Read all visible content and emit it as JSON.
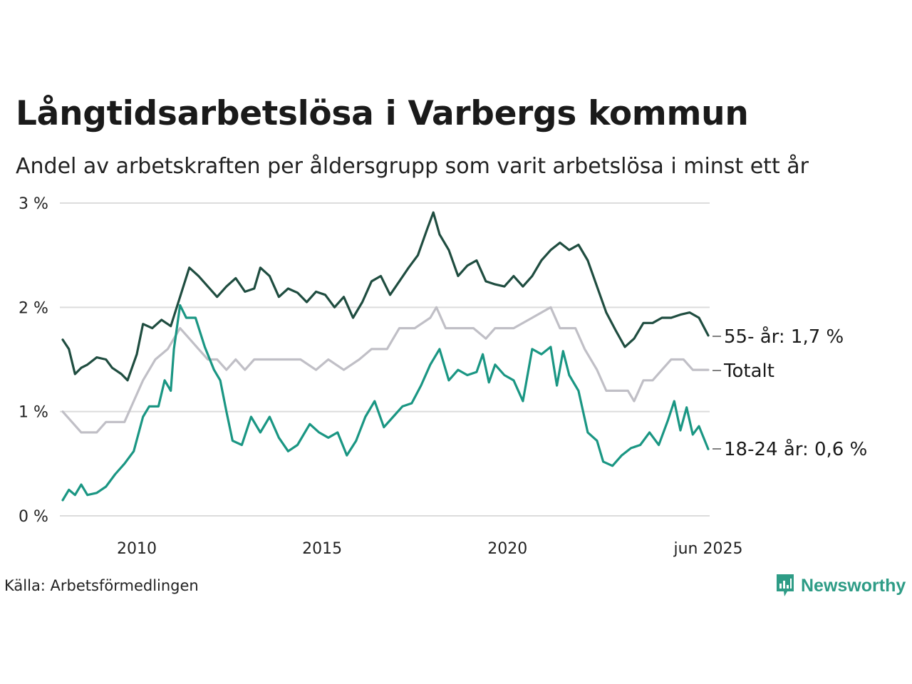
{
  "title": "Långtidsarbetslösa i Varbergs kommun",
  "subtitle": "Andel av arbetskraften per åldersgrupp som varit arbetslösa i minst ett år",
  "source": "Källa: Arbetsförmedlingen",
  "logo_text": "Newsworthy",
  "colors": {
    "s55": "#1f4d40",
    "total": "#c0bfc6",
    "s1824": "#1a9683",
    "grid": "#dcdcdc",
    "logo": "#2e9c86"
  },
  "chart_data": {
    "type": "line",
    "x_range": [
      "2008-01",
      "2025-06"
    ],
    "y_range": [
      0,
      3
    ],
    "y_ticks": [
      {
        "value": 0,
        "label": "0 %"
      },
      {
        "value": 1,
        "label": "1 %"
      },
      {
        "value": 2,
        "label": "2 %"
      },
      {
        "value": 3,
        "label": "3 %"
      }
    ],
    "x_ticks": [
      {
        "value": "2010-01",
        "label": "2010"
      },
      {
        "value": "2015-01",
        "label": "2015"
      },
      {
        "value": "2020-01",
        "label": "2020"
      },
      {
        "value": "2025-06",
        "label": "jun 2025"
      }
    ],
    "series": [
      {
        "key": "s55",
        "end_label": "55- år: 1,7 %",
        "points": [
          [
            "2008-01",
            1.69
          ],
          [
            "2008-03",
            1.6
          ],
          [
            "2008-05",
            1.36
          ],
          [
            "2008-07",
            1.42
          ],
          [
            "2008-09",
            1.45
          ],
          [
            "2008-12",
            1.52
          ],
          [
            "2009-03",
            1.5
          ],
          [
            "2009-05",
            1.42
          ],
          [
            "2009-08",
            1.36
          ],
          [
            "2009-10",
            1.3
          ],
          [
            "2010-01",
            1.55
          ],
          [
            "2010-03",
            1.84
          ],
          [
            "2010-06",
            1.8
          ],
          [
            "2010-09",
            1.88
          ],
          [
            "2010-12",
            1.82
          ],
          [
            "2011-03",
            2.1
          ],
          [
            "2011-06",
            2.38
          ],
          [
            "2011-09",
            2.3
          ],
          [
            "2011-12",
            2.2
          ],
          [
            "2012-03",
            2.1
          ],
          [
            "2012-06",
            2.2
          ],
          [
            "2012-09",
            2.28
          ],
          [
            "2012-12",
            2.15
          ],
          [
            "2013-03",
            2.18
          ],
          [
            "2013-05",
            2.38
          ],
          [
            "2013-08",
            2.3
          ],
          [
            "2013-11",
            2.1
          ],
          [
            "2014-02",
            2.18
          ],
          [
            "2014-05",
            2.14
          ],
          [
            "2014-08",
            2.05
          ],
          [
            "2014-11",
            2.15
          ],
          [
            "2015-02",
            2.12
          ],
          [
            "2015-05",
            2.0
          ],
          [
            "2015-08",
            2.1
          ],
          [
            "2015-11",
            1.9
          ],
          [
            "2016-02",
            2.05
          ],
          [
            "2016-05",
            2.25
          ],
          [
            "2016-08",
            2.3
          ],
          [
            "2016-11",
            2.12
          ],
          [
            "2017-02",
            2.25
          ],
          [
            "2017-05",
            2.38
          ],
          [
            "2017-08",
            2.5
          ],
          [
            "2017-11",
            2.75
          ],
          [
            "2018-01",
            2.91
          ],
          [
            "2018-03",
            2.7
          ],
          [
            "2018-06",
            2.55
          ],
          [
            "2018-09",
            2.3
          ],
          [
            "2018-12",
            2.4
          ],
          [
            "2019-03",
            2.45
          ],
          [
            "2019-06",
            2.25
          ],
          [
            "2019-09",
            2.22
          ],
          [
            "2019-12",
            2.2
          ],
          [
            "2020-03",
            2.3
          ],
          [
            "2020-06",
            2.2
          ],
          [
            "2020-09",
            2.3
          ],
          [
            "2020-12",
            2.45
          ],
          [
            "2021-03",
            2.55
          ],
          [
            "2021-06",
            2.62
          ],
          [
            "2021-09",
            2.55
          ],
          [
            "2021-12",
            2.6
          ],
          [
            "2022-03",
            2.45
          ],
          [
            "2022-06",
            2.2
          ],
          [
            "2022-09",
            1.95
          ],
          [
            "2022-12",
            1.78
          ],
          [
            "2023-03",
            1.62
          ],
          [
            "2023-06",
            1.7
          ],
          [
            "2023-09",
            1.85
          ],
          [
            "2023-12",
            1.85
          ],
          [
            "2024-03",
            1.9
          ],
          [
            "2024-06",
            1.9
          ],
          [
            "2024-09",
            1.93
          ],
          [
            "2024-12",
            1.95
          ],
          [
            "2025-03",
            1.9
          ],
          [
            "2025-06",
            1.73
          ]
        ]
      },
      {
        "key": "total",
        "end_label": "Totalt",
        "points": [
          [
            "2008-01",
            1.0
          ],
          [
            "2008-04",
            0.9
          ],
          [
            "2008-07",
            0.8
          ],
          [
            "2008-12",
            0.8
          ],
          [
            "2009-03",
            0.9
          ],
          [
            "2009-09",
            0.9
          ],
          [
            "2009-12",
            1.1
          ],
          [
            "2010-03",
            1.3
          ],
          [
            "2010-07",
            1.5
          ],
          [
            "2010-11",
            1.6
          ],
          [
            "2011-03",
            1.8
          ],
          [
            "2011-06",
            1.7
          ],
          [
            "2011-09",
            1.6
          ],
          [
            "2011-12",
            1.5
          ],
          [
            "2012-03",
            1.5
          ],
          [
            "2012-06",
            1.4
          ],
          [
            "2012-09",
            1.5
          ],
          [
            "2012-12",
            1.4
          ],
          [
            "2013-03",
            1.5
          ],
          [
            "2013-08",
            1.5
          ],
          [
            "2014-01",
            1.5
          ],
          [
            "2014-06",
            1.5
          ],
          [
            "2014-11",
            1.4
          ],
          [
            "2015-03",
            1.5
          ],
          [
            "2015-08",
            1.4
          ],
          [
            "2016-01",
            1.5
          ],
          [
            "2016-05",
            1.6
          ],
          [
            "2016-10",
            1.6
          ],
          [
            "2017-02",
            1.8
          ],
          [
            "2017-07",
            1.8
          ],
          [
            "2017-12",
            1.9
          ],
          [
            "2018-02",
            2.0
          ],
          [
            "2018-05",
            1.8
          ],
          [
            "2018-09",
            1.8
          ],
          [
            "2019-02",
            1.8
          ],
          [
            "2019-06",
            1.7
          ],
          [
            "2019-09",
            1.8
          ],
          [
            "2020-03",
            1.8
          ],
          [
            "2020-09",
            1.9
          ],
          [
            "2021-03",
            2.0
          ],
          [
            "2021-06",
            1.8
          ],
          [
            "2021-11",
            1.8
          ],
          [
            "2022-02",
            1.6
          ],
          [
            "2022-06",
            1.4
          ],
          [
            "2022-09",
            1.2
          ],
          [
            "2023-04",
            1.2
          ],
          [
            "2023-06",
            1.1
          ],
          [
            "2023-09",
            1.3
          ],
          [
            "2023-12",
            1.3
          ],
          [
            "2024-03",
            1.4
          ],
          [
            "2024-06",
            1.5
          ],
          [
            "2024-10",
            1.5
          ],
          [
            "2025-01",
            1.4
          ],
          [
            "2025-06",
            1.4
          ]
        ]
      },
      {
        "key": "s1824",
        "end_label": "18-24 år: 0,6 %",
        "points": [
          [
            "2008-01",
            0.15
          ],
          [
            "2008-03",
            0.25
          ],
          [
            "2008-05",
            0.2
          ],
          [
            "2008-07",
            0.3
          ],
          [
            "2008-09",
            0.2
          ],
          [
            "2008-12",
            0.22
          ],
          [
            "2009-03",
            0.28
          ],
          [
            "2009-06",
            0.4
          ],
          [
            "2009-09",
            0.5
          ],
          [
            "2009-12",
            0.62
          ],
          [
            "2010-03",
            0.95
          ],
          [
            "2010-05",
            1.05
          ],
          [
            "2010-08",
            1.05
          ],
          [
            "2010-10",
            1.3
          ],
          [
            "2010-12",
            1.2
          ],
          [
            "2011-01",
            1.6
          ],
          [
            "2011-03",
            2.02
          ],
          [
            "2011-05",
            1.9
          ],
          [
            "2011-08",
            1.9
          ],
          [
            "2011-11",
            1.62
          ],
          [
            "2012-02",
            1.4
          ],
          [
            "2012-04",
            1.3
          ],
          [
            "2012-06",
            1.0
          ],
          [
            "2012-08",
            0.72
          ],
          [
            "2012-11",
            0.68
          ],
          [
            "2013-02",
            0.95
          ],
          [
            "2013-05",
            0.8
          ],
          [
            "2013-08",
            0.95
          ],
          [
            "2013-11",
            0.75
          ],
          [
            "2014-02",
            0.62
          ],
          [
            "2014-05",
            0.68
          ],
          [
            "2014-09",
            0.88
          ],
          [
            "2014-12",
            0.8
          ],
          [
            "2015-03",
            0.75
          ],
          [
            "2015-06",
            0.8
          ],
          [
            "2015-09",
            0.58
          ],
          [
            "2015-12",
            0.72
          ],
          [
            "2016-03",
            0.95
          ],
          [
            "2016-06",
            1.1
          ],
          [
            "2016-09",
            0.85
          ],
          [
            "2016-12",
            0.95
          ],
          [
            "2017-03",
            1.05
          ],
          [
            "2017-06",
            1.08
          ],
          [
            "2017-09",
            1.25
          ],
          [
            "2017-12",
            1.45
          ],
          [
            "2018-03",
            1.6
          ],
          [
            "2018-06",
            1.3
          ],
          [
            "2018-09",
            1.4
          ],
          [
            "2018-12",
            1.35
          ],
          [
            "2019-03",
            1.38
          ],
          [
            "2019-05",
            1.55
          ],
          [
            "2019-07",
            1.28
          ],
          [
            "2019-09",
            1.45
          ],
          [
            "2019-12",
            1.35
          ],
          [
            "2020-03",
            1.3
          ],
          [
            "2020-06",
            1.1
          ],
          [
            "2020-09",
            1.6
          ],
          [
            "2020-12",
            1.55
          ],
          [
            "2021-03",
            1.62
          ],
          [
            "2021-05",
            1.25
          ],
          [
            "2021-07",
            1.58
          ],
          [
            "2021-09",
            1.35
          ],
          [
            "2021-12",
            1.2
          ],
          [
            "2022-03",
            0.8
          ],
          [
            "2022-06",
            0.72
          ],
          [
            "2022-08",
            0.52
          ],
          [
            "2022-11",
            0.48
          ],
          [
            "2023-02",
            0.58
          ],
          [
            "2023-05",
            0.65
          ],
          [
            "2023-08",
            0.68
          ],
          [
            "2023-11",
            0.8
          ],
          [
            "2024-02",
            0.68
          ],
          [
            "2024-05",
            0.92
          ],
          [
            "2024-07",
            1.1
          ],
          [
            "2024-09",
            0.82
          ],
          [
            "2024-11",
            1.04
          ],
          [
            "2025-01",
            0.78
          ],
          [
            "2025-03",
            0.86
          ],
          [
            "2025-06",
            0.64
          ]
        ]
      }
    ]
  }
}
